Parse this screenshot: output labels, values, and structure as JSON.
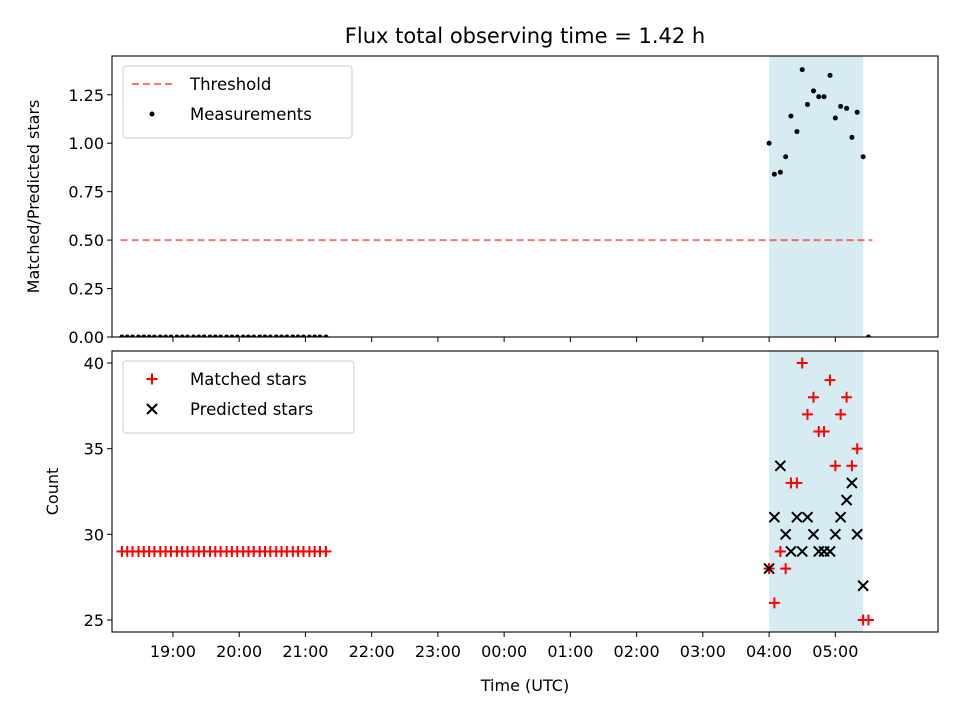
{
  "chart_data": [
    {
      "type": "scatter",
      "title": "Flux total observing time = 1.42 h",
      "xlabel": "",
      "ylabel": "Matched/Predicted stars",
      "x_unit": "hours since 19:00 UTC",
      "xlim": [
        -0.92,
        11.55
      ],
      "ylim": [
        0.0,
        1.45
      ],
      "yticks": [
        0.0,
        0.25,
        0.5,
        0.75,
        1.0,
        1.25
      ],
      "ytick_labels": [
        "0.00",
        "0.25",
        "0.50",
        "0.75",
        "1.00",
        "1.25"
      ],
      "xticks": [
        0,
        1,
        2,
        3,
        4,
        5,
        6,
        7,
        8,
        9,
        10
      ],
      "legend": "top-left",
      "shaded_region": {
        "x0": 9.0,
        "x1": 10.42,
        "color": "#add8e6"
      },
      "threshold": {
        "name": "Threshold",
        "y": 0.5,
        "x0": -0.79,
        "x1": 10.56,
        "color": "#ff0000"
      },
      "series": [
        {
          "name": "Measurements",
          "marker": "dot",
          "color": "#000000",
          "x": [
            -0.77,
            -0.69,
            -0.61,
            -0.52,
            -0.44,
            -0.36,
            -0.28,
            -0.19,
            -0.11,
            -0.03,
            0.06,
            0.14,
            0.22,
            0.31,
            0.39,
            0.47,
            0.56,
            0.64,
            0.72,
            0.81,
            0.89,
            0.97,
            1.06,
            1.14,
            1.22,
            1.31,
            1.39,
            1.47,
            1.56,
            1.64,
            1.72,
            1.81,
            1.89,
            1.97,
            2.06,
            2.14,
            2.22,
            2.31,
            9.0,
            9.08,
            9.17,
            9.25,
            9.33,
            9.42,
            9.5,
            9.58,
            9.67,
            9.75,
            9.83,
            9.92,
            10.0,
            10.08,
            10.17,
            10.25,
            10.33,
            10.42,
            10.5
          ],
          "y": [
            0,
            0,
            0,
            0,
            0,
            0,
            0,
            0,
            0,
            0,
            0,
            0,
            0,
            0,
            0,
            0,
            0,
            0,
            0,
            0,
            0,
            0,
            0,
            0,
            0,
            0,
            0,
            0,
            0,
            0,
            0,
            0,
            0,
            0,
            0,
            0,
            0,
            0,
            1.0,
            0.84,
            0.85,
            0.93,
            1.14,
            1.06,
            1.38,
            1.2,
            1.27,
            1.24,
            1.24,
            1.35,
            1.13,
            1.19,
            1.18,
            1.03,
            1.16,
            0.93,
            0.0
          ]
        }
      ]
    },
    {
      "type": "scatter",
      "title": "",
      "xlabel": "Time (UTC)",
      "ylabel": "Count",
      "x_unit": "hours since 19:00 UTC",
      "xlim": [
        -0.92,
        11.55
      ],
      "ylim": [
        24.3,
        40.7
      ],
      "yticks": [
        25,
        30,
        35,
        40
      ],
      "ytick_labels": [
        "25",
        "30",
        "35",
        "40"
      ],
      "xticks": [
        0,
        1,
        2,
        3,
        4,
        5,
        6,
        7,
        8,
        9,
        10
      ],
      "xtick_labels": [
        "19:00",
        "20:00",
        "21:00",
        "22:00",
        "23:00",
        "00:00",
        "01:00",
        "02:00",
        "03:00",
        "04:00",
        "05:00"
      ],
      "legend": "top-left",
      "shaded_region": {
        "x0": 9.0,
        "x1": 10.42,
        "color": "#add8e6"
      },
      "series": [
        {
          "name": "Matched stars",
          "marker": "plus",
          "color": "#ff0000",
          "x": [
            -0.77,
            -0.69,
            -0.61,
            -0.52,
            -0.44,
            -0.36,
            -0.28,
            -0.19,
            -0.11,
            -0.03,
            0.06,
            0.14,
            0.22,
            0.31,
            0.39,
            0.47,
            0.56,
            0.64,
            0.72,
            0.81,
            0.89,
            0.97,
            1.06,
            1.14,
            1.22,
            1.31,
            1.39,
            1.47,
            1.56,
            1.64,
            1.72,
            1.81,
            1.89,
            1.97,
            2.06,
            2.14,
            2.22,
            2.31,
            9.0,
            9.08,
            9.17,
            9.25,
            9.33,
            9.42,
            9.5,
            9.58,
            9.67,
            9.75,
            9.83,
            9.92,
            10.0,
            10.08,
            10.17,
            10.25,
            10.33,
            10.42,
            10.5
          ],
          "y": [
            29,
            29,
            29,
            29,
            29,
            29,
            29,
            29,
            29,
            29,
            29,
            29,
            29,
            29,
            29,
            29,
            29,
            29,
            29,
            29,
            29,
            29,
            29,
            29,
            29,
            29,
            29,
            29,
            29,
            29,
            29,
            29,
            29,
            29,
            29,
            29,
            29,
            29,
            28,
            26,
            29,
            28,
            33,
            33,
            40,
            37,
            38,
            36,
            36,
            39,
            34,
            37,
            38,
            34,
            35,
            25,
            25
          ]
        },
        {
          "name": "Predicted stars",
          "marker": "x",
          "color": "#000000",
          "x": [
            9.0,
            9.08,
            9.17,
            9.25,
            9.33,
            9.42,
            9.5,
            9.58,
            9.67,
            9.75,
            9.83,
            9.92,
            10.0,
            10.08,
            10.17,
            10.25,
            10.33,
            10.42
          ],
          "y": [
            28,
            31,
            34,
            30,
            29,
            31,
            29,
            31,
            30,
            29,
            29,
            29,
            30,
            31,
            32,
            33,
            30,
            27
          ]
        }
      ]
    }
  ]
}
